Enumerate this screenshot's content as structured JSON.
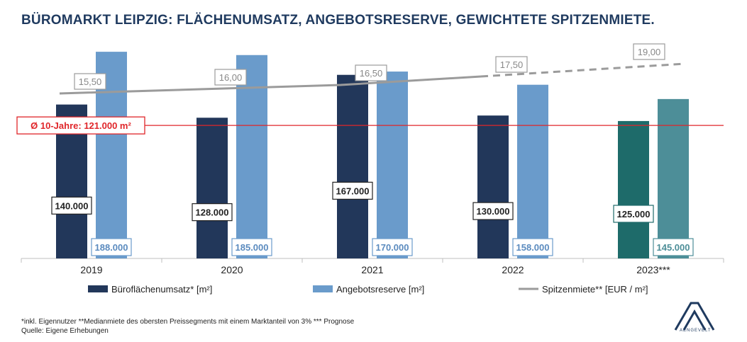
{
  "title": "BÜROMARKT LEIPZIG: FLÄCHENUMSATZ, ANGEBOTSRESERVE, GEWICHTETE SPITZENMIETE.",
  "chart_data": {
    "type": "bar",
    "categories": [
      "2019",
      "2020",
      "2021",
      "2022",
      "2023***"
    ],
    "series": [
      {
        "name": "Büroflächenumsatz* [m²]",
        "values": [
          140000,
          128000,
          167000,
          130000,
          125000
        ],
        "labels": [
          "140.000",
          "128.000",
          "167.000",
          "130.000",
          "125.000"
        ]
      },
      {
        "name": "Angebotsreserve [m²]",
        "values": [
          188000,
          185000,
          170000,
          158000,
          145000
        ],
        "labels": [
          "188.000",
          "185.000",
          "170.000",
          "158.000",
          "145.000"
        ]
      }
    ],
    "line_series": {
      "name": "Spitzenmiete** [EUR / m²]",
      "values": [
        15.5,
        16.0,
        16.5,
        17.5,
        19.0
      ],
      "labels": [
        "15,50",
        "16,00",
        "16,50",
        "17,50",
        "19,00"
      ],
      "forecast_from_index": 3
    },
    "reference_line": {
      "label": "Ø 10-Jahre: 121.000 m²",
      "value": 121000
    },
    "colors": {
      "umsatz": "#22375a",
      "reserve": "#6a9bcb",
      "umsatz_forecast": "#1e6b6a",
      "reserve_forecast": "#4d8e98",
      "rent_line": "#9b9b9b",
      "reference": "#e0262a"
    },
    "legend_position": "bottom",
    "grid": false
  },
  "footnotes": [
    "*inkl. Eigennutzer **Medianmiete des obersten Preissegments mit einem Marktanteil von 3% *** Prognose",
    "Quelle: Eigene Erhebungen"
  ],
  "logo": {
    "text": "AENGEVELT"
  }
}
